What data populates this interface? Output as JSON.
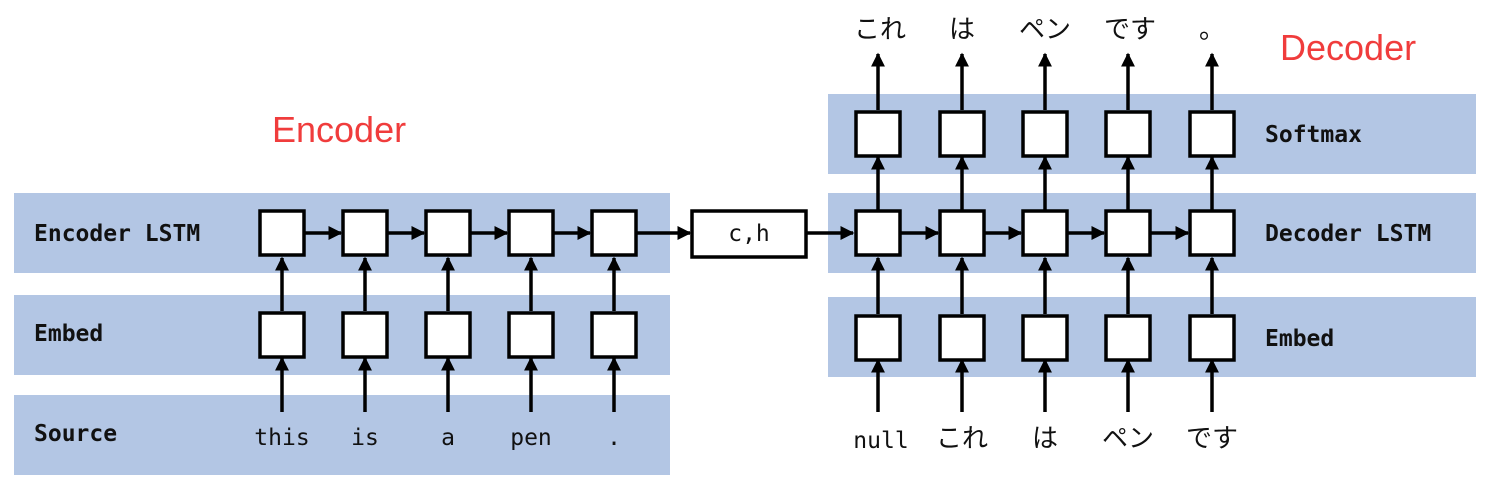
{
  "colors": {
    "band": "#b3c6e4",
    "title": "#f03c3c"
  },
  "titles": {
    "encoder": "Encoder",
    "decoder": "Decoder"
  },
  "encoder": {
    "layers": {
      "lstm": "Encoder LSTM",
      "embed": "Embed",
      "source": "Source"
    },
    "source_tokens": [
      "this",
      "is",
      "a",
      "pen",
      "."
    ]
  },
  "context": {
    "label": "c,h"
  },
  "decoder": {
    "layers": {
      "softmax": "Softmax",
      "lstm": "Decoder LSTM",
      "embed": "Embed"
    },
    "input_tokens": [
      "null",
      "これ",
      "は",
      "ペン",
      "です"
    ],
    "output_tokens": [
      "これ",
      "は",
      "ペン",
      "です",
      "。"
    ]
  }
}
